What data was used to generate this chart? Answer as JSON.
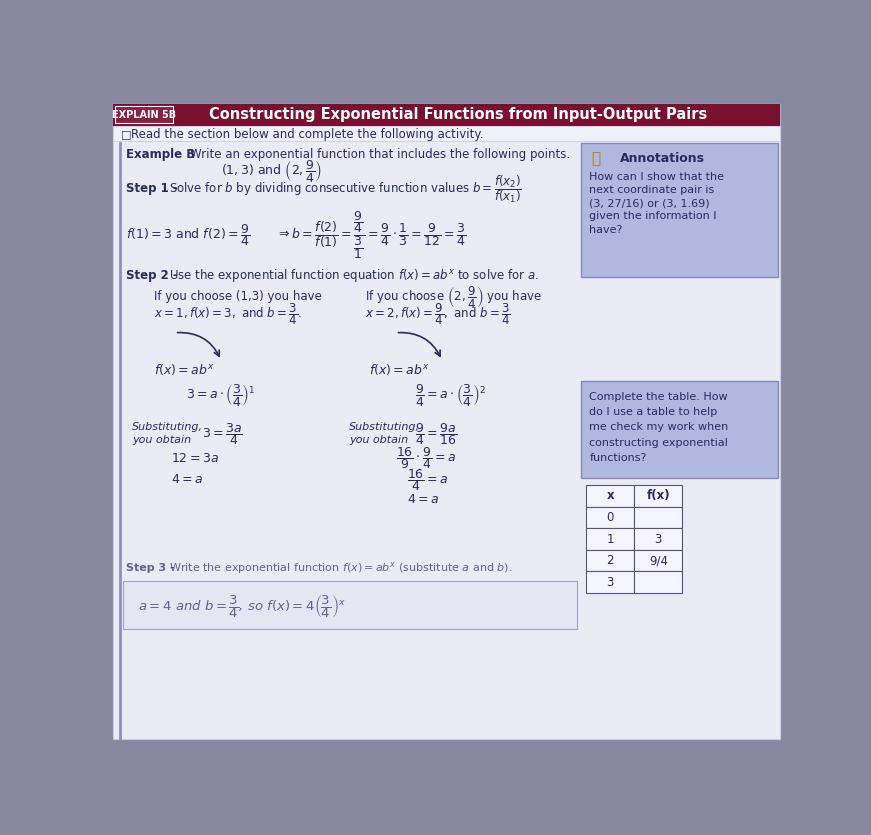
{
  "title": "Constructing Exponential Functions from Input-Output Pairs",
  "explain_label": "EXPLAIN 5B",
  "subtitle": "Read the section below and complete the following activity.",
  "outer_bg": "#8888a0",
  "page_bg": "#e8e8f0",
  "content_bg": "#ebebf5",
  "header_bg": "#7a1030",
  "explain_box_bg": "#8a2040",
  "annotation_bg": "#b0b8e0",
  "text_color": "#2a2a60",
  "table_data": [
    [
      "x",
      "f(x)"
    ],
    [
      "0",
      ""
    ],
    [
      "1",
      "3"
    ],
    [
      "2",
      "9/4"
    ],
    [
      "3",
      ""
    ]
  ],
  "ann1_lines": [
    "How can I show that the",
    "next coordinate pair is",
    "(3, 27/16) or (3, 1.69)",
    "given the information I",
    "have?"
  ],
  "ann2_lines": [
    "Complete the table. How",
    "do I use a table to help",
    "me check my work when",
    "constructing exponential",
    "functions?"
  ]
}
